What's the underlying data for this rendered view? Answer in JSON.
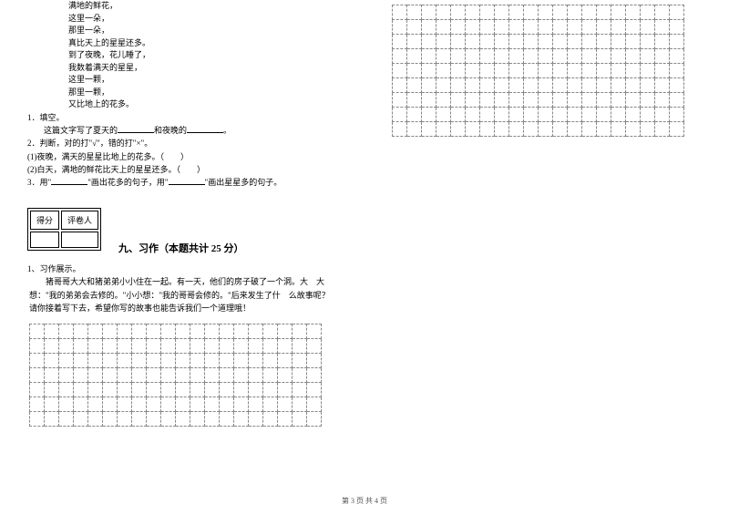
{
  "poem": {
    "lines": [
      "满地的鲜花，",
      "这里一朵，",
      "那里一朵，",
      "真比天上的星星还多。",
      "到了夜晚，花儿睡了，",
      "我数着满天的星星，",
      "这里一颗，",
      "那里一颗，",
      "又比地上的花多。"
    ]
  },
  "questions": {
    "q1_label": "1．填空。",
    "q1_text_a": "这篇文字写了夏天的",
    "q1_text_b": "和夜晚的",
    "q1_text_c": "。",
    "q2_label": "2．判断，对的打\"√\"，错的打\"×\"。",
    "q2_item1": "(1)夜晚，满天的星星比地上的花多。（　　）",
    "q2_item2": "(2)白天，满地的鲜花比天上的星星还多。（　　）",
    "q3_text_a": "3．用\"",
    "q3_text_b": "\"画出花多的句子，用\"",
    "q3_text_c": "\"画出星星多的句子。"
  },
  "score": {
    "left": "得分",
    "right": "评卷人"
  },
  "section": {
    "title": "九、习作（本题共计 25 分）"
  },
  "essay": {
    "label": "1、习作展示。",
    "text": "猪哥哥大大和猪弟弟小小住在一起。有一天，他们的房子破了一个洞。大　大想：\"我的弟弟会去修的。\"小小想：\"我的哥哥会修的。\"后来发生了什　么故事呢？请你接着写下去，希望你写的故事也能告诉我们一个道理哦！"
  },
  "grid_left": {
    "rows": 7,
    "cols": 20
  },
  "grid_right": {
    "rows": 9,
    "cols": 20
  },
  "footer": "第 3 页 共 4 页"
}
